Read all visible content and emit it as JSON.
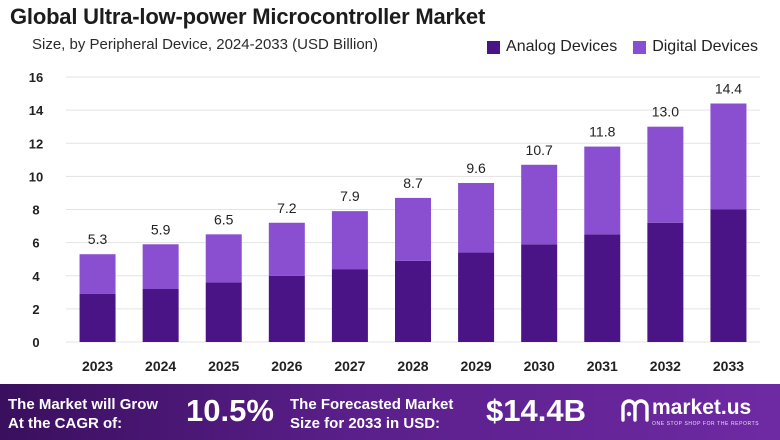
{
  "chart_data": {
    "type": "bar",
    "stacked": true,
    "title": "Global Ultra-low-power Microcontroller Market",
    "subtitle": "Size, by Peripheral  Device, 2024-2033 (USD Billion)",
    "categories": [
      "2023",
      "2024",
      "2025",
      "2026",
      "2027",
      "2028",
      "2029",
      "2030",
      "2031",
      "2032",
      "2033"
    ],
    "series": [
      {
        "name": "Analog Devices",
        "color": "#4a1486",
        "values": [
          2.9,
          3.2,
          3.6,
          4.0,
          4.4,
          4.9,
          5.4,
          5.9,
          6.5,
          7.2,
          8.0
        ]
      },
      {
        "name": "Digital Devices",
        "color": "#8a4fd0",
        "values": [
          2.4,
          2.7,
          2.9,
          3.2,
          3.5,
          3.8,
          4.2,
          4.8,
          5.3,
          5.8,
          6.4
        ]
      }
    ],
    "totals": [
      "5.3",
      "5.9",
      "6.5",
      "7.2",
      "7.9",
      "8.7",
      "9.6",
      "10.7",
      "11.8",
      "13.0",
      "14.4"
    ],
    "ylim": [
      0,
      16
    ],
    "yticks": [
      "0",
      "2",
      "4",
      "6",
      "8",
      "10",
      "12",
      "14",
      "16"
    ],
    "grid": true,
    "legend_position": "top-right"
  },
  "footer": {
    "cagr_label_line1": "The Market will Grow",
    "cagr_label_line2": "At the CAGR of:",
    "cagr_value": "10.5%",
    "forecast_label_line1": "The Forecasted Market",
    "forecast_label_line2": "Size for 2033 in USD:",
    "forecast_value": "$14.4B",
    "brand_name": "market.us",
    "brand_tagline": "ONE STOP SHOP FOR THE REPORTS",
    "brand_icon": "market-us-logo-icon"
  }
}
